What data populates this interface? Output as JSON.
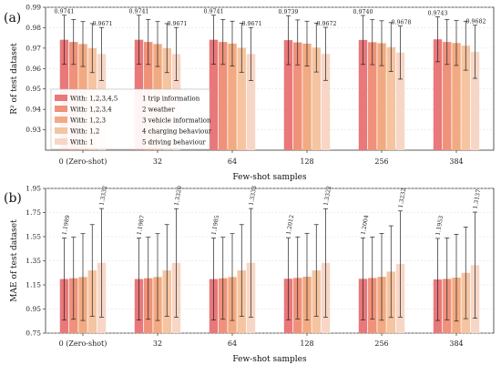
{
  "chart_data": [
    {
      "type": "bar",
      "panel_label": "(a)",
      "ylabel": "R² of test dataset",
      "xlabel": "Few-shot samples",
      "categories": [
        "0 (Zero-shot)",
        "32",
        "64",
        "128",
        "256",
        "384"
      ],
      "ylim": [
        0.92,
        0.99
      ],
      "yticks": [
        "0.93",
        "0.94",
        "0.95",
        "0.96",
        "0.97",
        "0.98",
        "0.99"
      ],
      "series": [
        {
          "name": "With: 1,2,3,4,5",
          "color": "#e8787a",
          "values": [
            0.9741,
            0.9741,
            0.9741,
            0.9739,
            0.974,
            0.9743
          ],
          "err": [
            0.012,
            0.012,
            0.012,
            0.012,
            0.012,
            0.011
          ]
        },
        {
          "name": "With: 1,2,3,4",
          "color": "#f0917a",
          "values": [
            0.973,
            0.973,
            0.973,
            0.9728,
            0.9729,
            0.973
          ],
          "err": [
            0.011,
            0.011,
            0.011,
            0.011,
            0.011,
            0.011
          ]
        },
        {
          "name": "With: 1,2,3",
          "color": "#f2aa82",
          "values": [
            0.972,
            0.972,
            0.9722,
            0.9722,
            0.9724,
            0.9725
          ],
          "err": [
            0.011,
            0.011,
            0.011,
            0.011,
            0.011,
            0.011
          ]
        },
        {
          "name": "With: 1,2",
          "color": "#f5c4a0",
          "values": [
            0.97,
            0.97,
            0.9702,
            0.9703,
            0.9705,
            0.9712
          ],
          "err": [
            0.012,
            0.012,
            0.012,
            0.012,
            0.012,
            0.012
          ]
        },
        {
          "name": "With: 1",
          "color": "#f7d6c6",
          "values": [
            0.9671,
            0.9671,
            0.9671,
            0.9672,
            0.9678,
            0.9682
          ],
          "err": [
            0.013,
            0.013,
            0.013,
            0.013,
            0.013,
            0.013
          ]
        }
      ],
      "data_labels": [
        [
          "0.9741",
          "0.9671"
        ],
        [
          "0.9741",
          "0.9671"
        ],
        [
          "0.9741",
          "0.9671"
        ],
        [
          "0.9739",
          "0.9672"
        ],
        [
          "0.9740",
          "0.9678"
        ],
        [
          "0.9743",
          "0.9682"
        ]
      ],
      "legend_position": "lower-left",
      "legend_notes": [
        "1 trip information",
        "2 weather",
        "3 vehicle information",
        "4 charging behaviour",
        "5 driving behaviour"
      ]
    },
    {
      "type": "bar",
      "panel_label": "(b)",
      "ylabel": "MAE of test dataset",
      "xlabel": "Few-shot samples",
      "categories": [
        "0 (Zero-shot)",
        "32",
        "64",
        "128",
        "256",
        "384"
      ],
      "ylim": [
        0.75,
        1.95
      ],
      "yticks": [
        "0.75",
        "0.95",
        "1.15",
        "1.35",
        "1.55",
        "1.75",
        "1.95"
      ],
      "series": [
        {
          "name": "With: 1,2,3,4,5",
          "color": "#e8787a",
          "values": [
            1.1989,
            1.1987,
            1.1985,
            1.2012,
            1.2004,
            1.1953
          ],
          "err": [
            0.34,
            0.34,
            0.34,
            0.34,
            0.34,
            0.34
          ]
        },
        {
          "name": "With: 1,2,3,4",
          "color": "#f0917a",
          "values": [
            1.205,
            1.205,
            1.205,
            1.208,
            1.207,
            1.2
          ],
          "err": [
            0.34,
            0.34,
            0.34,
            0.34,
            0.34,
            0.34
          ]
        },
        {
          "name": "With: 1,2,3",
          "color": "#f2aa82",
          "values": [
            1.215,
            1.215,
            1.215,
            1.218,
            1.217,
            1.21
          ],
          "err": [
            0.36,
            0.36,
            0.36,
            0.36,
            0.36,
            0.36
          ]
        },
        {
          "name": "With: 1,2",
          "color": "#f5c4a0",
          "values": [
            1.27,
            1.27,
            1.27,
            1.27,
            1.26,
            1.25
          ],
          "err": [
            0.38,
            0.38,
            0.38,
            0.38,
            0.38,
            0.38
          ]
        },
        {
          "name": "With: 1",
          "color": "#f7d6c6",
          "values": [
            1.3332,
            1.332,
            1.3333,
            1.3322,
            1.3232,
            1.3137
          ],
          "err": [
            0.45,
            0.45,
            0.45,
            0.45,
            0.44,
            0.44
          ]
        }
      ],
      "data_labels": [
        [
          "1.1989",
          "1.3332"
        ],
        [
          "1.1987",
          "1.3320"
        ],
        [
          "1.1985",
          "1.3333"
        ],
        [
          "1.2012",
          "1.3322"
        ],
        [
          "1.2004",
          "1.3232"
        ],
        [
          "1.1953",
          "1.3137"
        ]
      ]
    }
  ]
}
